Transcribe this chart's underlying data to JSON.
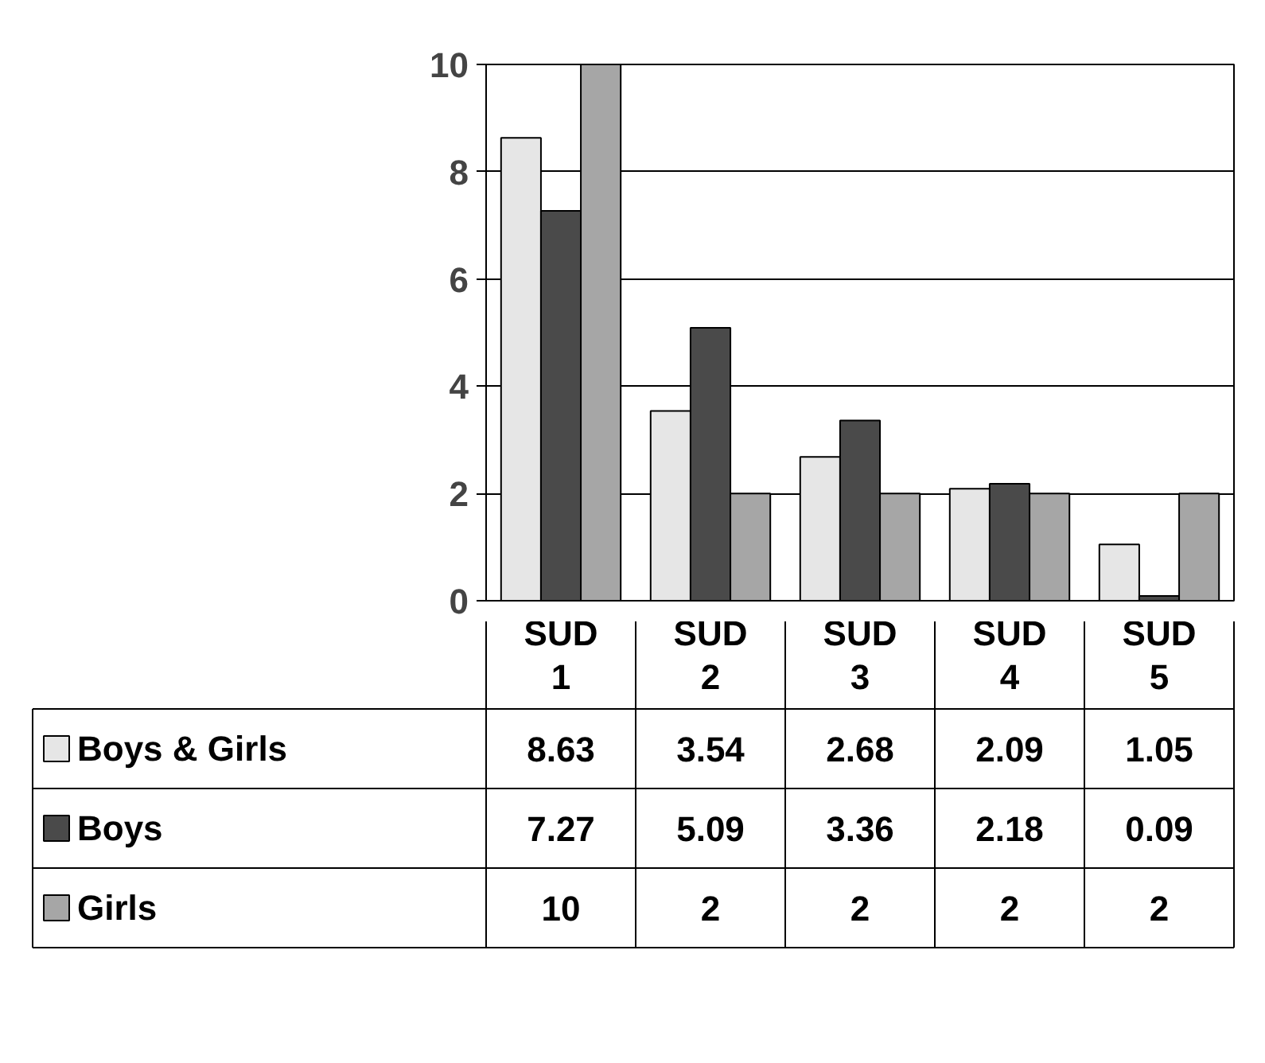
{
  "chart_data": {
    "type": "bar",
    "categories": [
      "SUD 1",
      "SUD 2",
      "SUD 3",
      "SUD 4",
      "SUD 5"
    ],
    "series": [
      {
        "name": "Boys & Girls",
        "color": "#e6e6e6",
        "values": [
          8.63,
          3.54,
          2.68,
          2.09,
          1.05
        ]
      },
      {
        "name": "Boys",
        "color": "#4a4a4a",
        "values": [
          7.27,
          5.09,
          3.36,
          2.18,
          0.09
        ]
      },
      {
        "name": "Girls",
        "color": "#a6a6a6",
        "values": [
          10,
          2,
          2,
          2,
          2
        ]
      }
    ],
    "ylim": [
      0,
      10
    ],
    "yticks": [
      0,
      2,
      4,
      6,
      8,
      10
    ],
    "grid": "y",
    "legend": "bottom",
    "data_labels": true
  }
}
